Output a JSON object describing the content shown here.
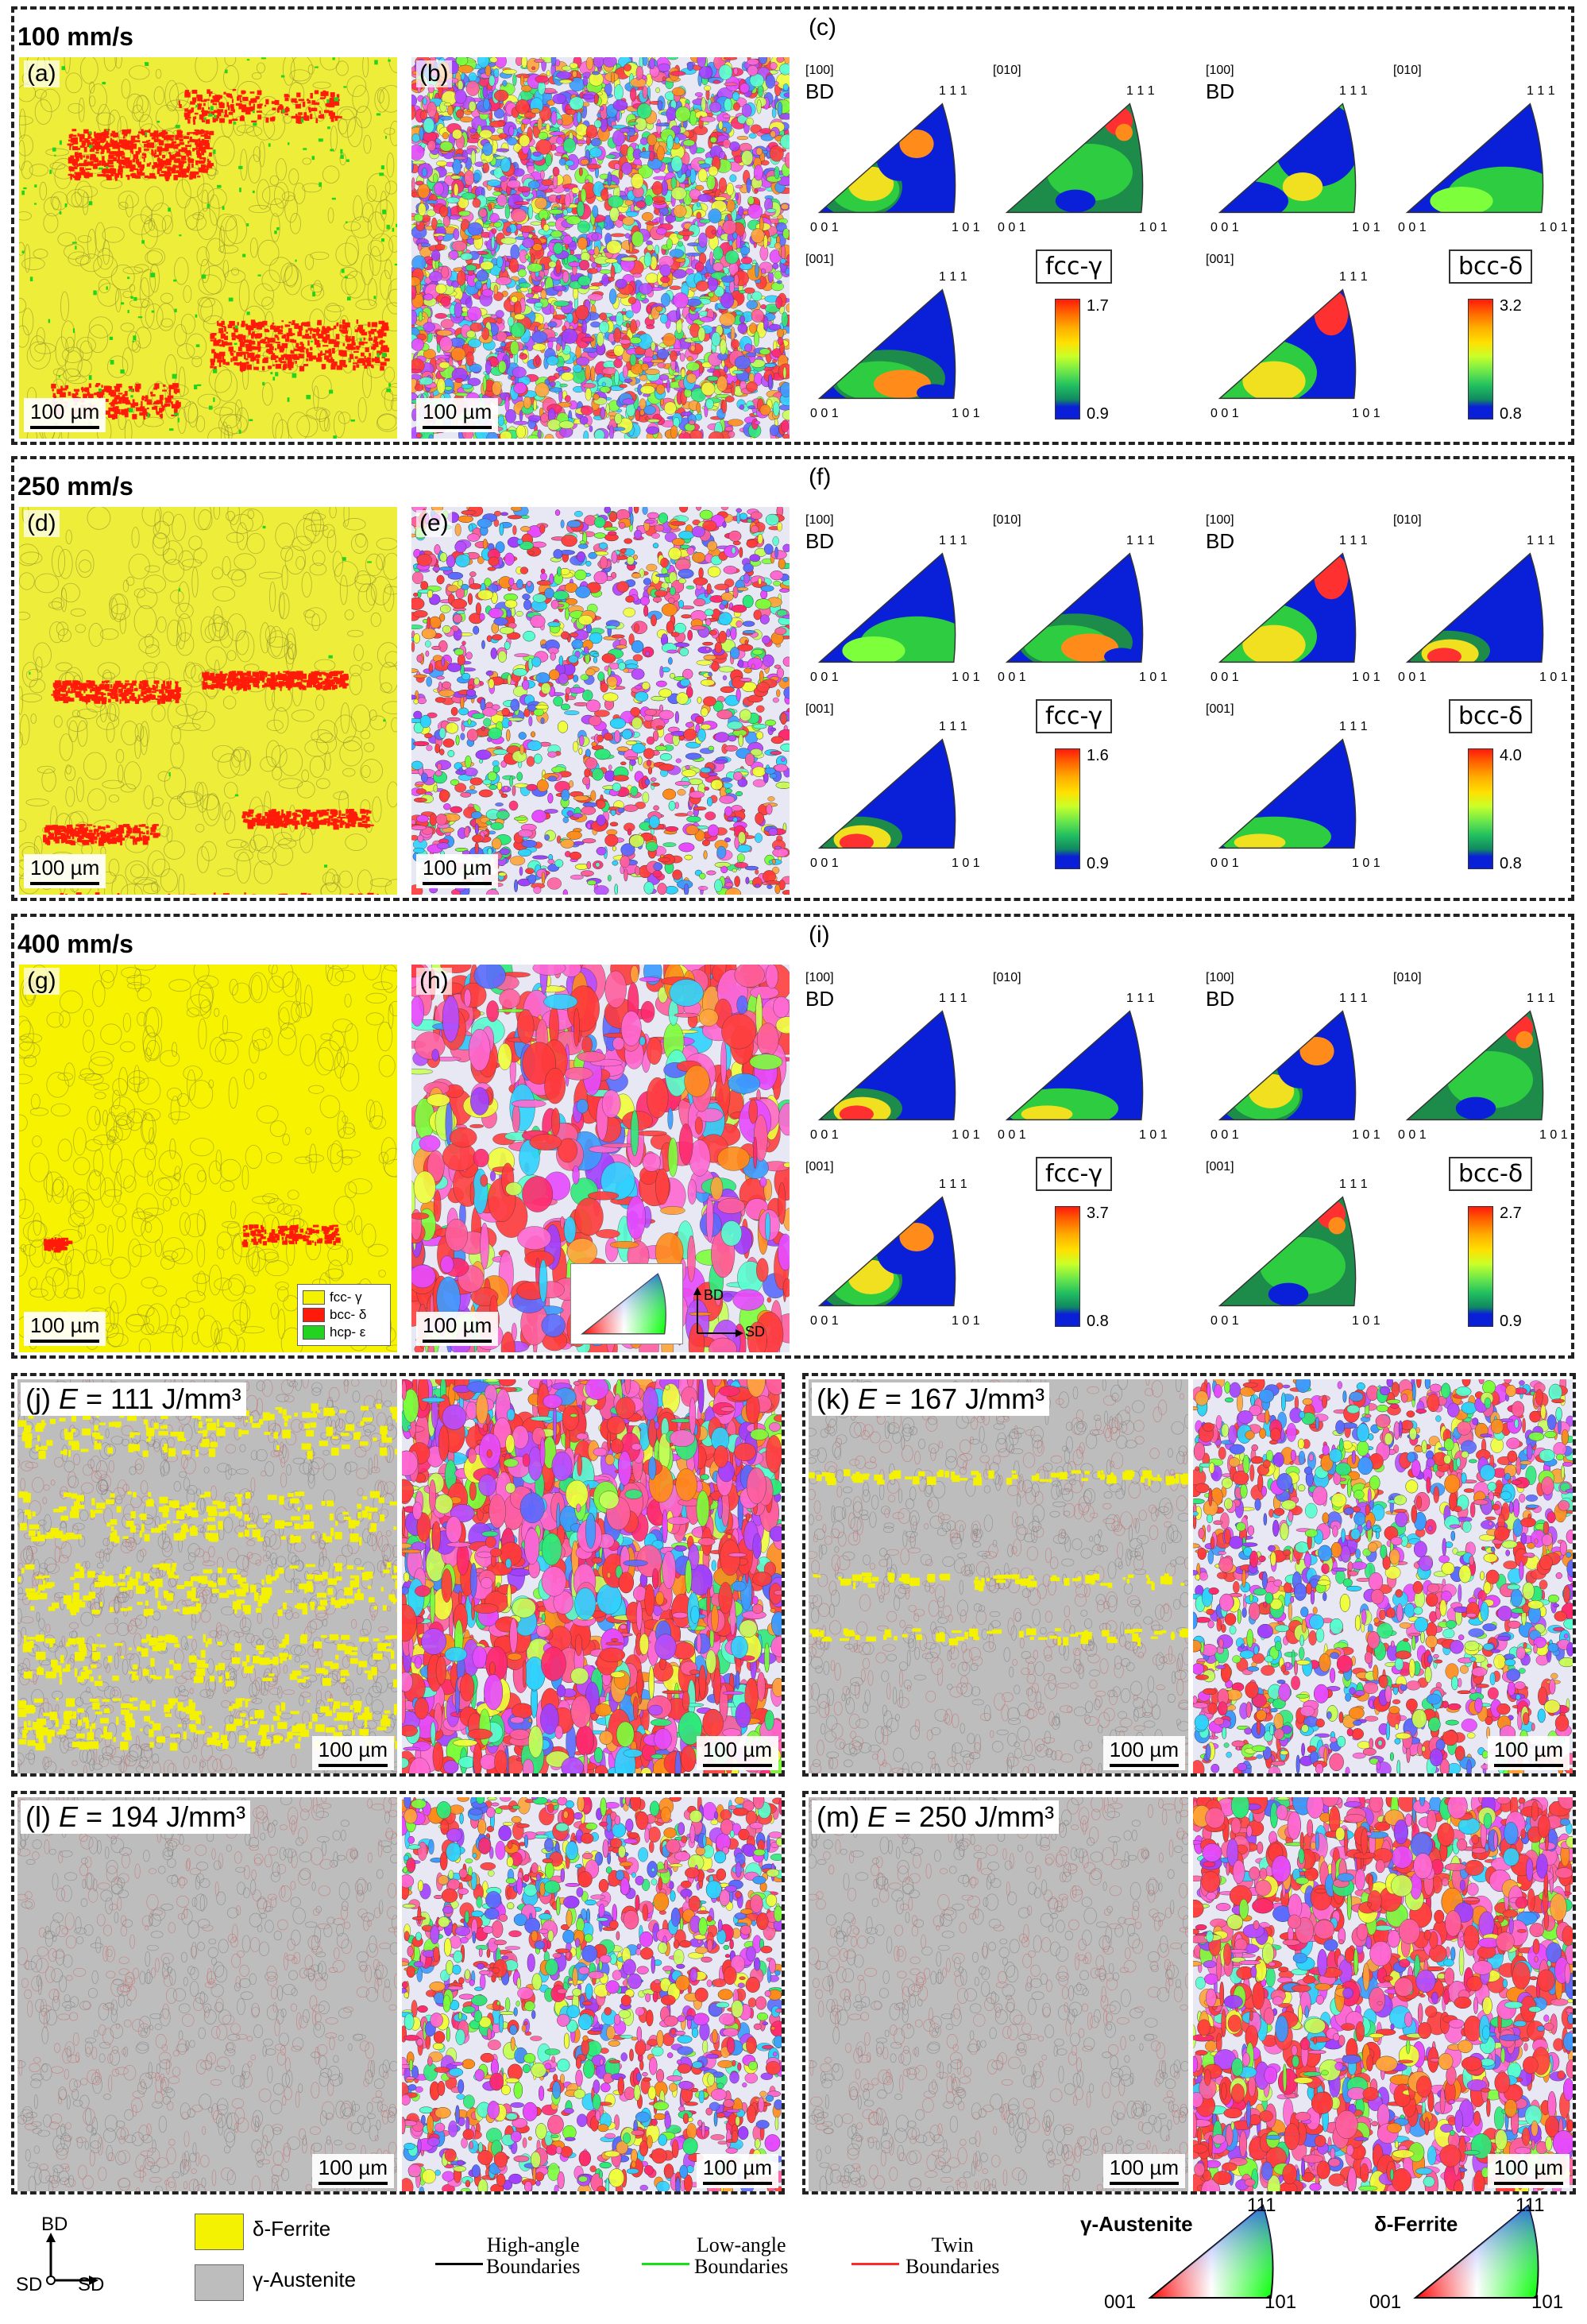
{
  "rows": [
    {
      "title": "100 mm/s",
      "phase_label": "(a)",
      "ipfmap_label": "(b)",
      "pf_label": "(c)",
      "scale": "100 µm"
    },
    {
      "title": "250 mm/s",
      "phase_label": "(d)",
      "ipfmap_label": "(e)",
      "pf_label": "(f)",
      "scale": "100 µm"
    },
    {
      "title": "400 mm/s",
      "phase_label": "(g)",
      "ipfmap_label": "(h)",
      "pf_label": "(i)",
      "scale": "100 µm"
    }
  ],
  "ipf": {
    "dir_100": "[100]",
    "dir_010": "[010]",
    "dir_001": "[001]",
    "bd": "BD",
    "c111": "1 1 1",
    "c001": "0 0 1",
    "c101": "1 0 1",
    "fcc": "fcc-γ",
    "bcc": "bcc-δ"
  },
  "colorbars": [
    {
      "fcc_max": "1.7",
      "fcc_min": "0.9",
      "bcc_max": "3.2",
      "bcc_min": "0.8"
    },
    {
      "fcc_max": "1.6",
      "fcc_min": "0.9",
      "bcc_max": "4.0",
      "bcc_min": "0.8"
    },
    {
      "fcc_max": "3.7",
      "fcc_min": "0.8",
      "bcc_max": "2.7",
      "bcc_min": "0.9"
    }
  ],
  "phase_legend": {
    "fcc": "fcc- γ",
    "bcc": "bcc- δ",
    "hcp": "hcp- ε"
  },
  "axes_small": {
    "bd": "BD",
    "sd": "SD"
  },
  "energy_panels": [
    {
      "label": "(j)",
      "prefix": "E",
      "value": " = 111 J/mm³",
      "scale_left": "100 µm",
      "scale_right": "100 µm"
    },
    {
      "label": "(k)",
      "prefix": "E",
      "value": " = 167 J/mm³",
      "scale_left": "100 µm",
      "scale_right": "100 µm"
    },
    {
      "label": "(l)",
      "prefix": "E",
      "value": " = 194 J/mm³",
      "scale_left": "100 µm",
      "scale_right": "100 µm"
    },
    {
      "label": "(m)",
      "prefix": "E",
      "value": " = 250 J/mm³",
      "scale_left": "100 µm",
      "scale_right": "100 µm"
    }
  ],
  "bottom_legend": {
    "bd": "BD",
    "sd_left": "SD",
    "sd_right": "SD",
    "delta_ferrite": "δ-Ferrite",
    "gamma_austenite": "γ-Austenite",
    "high_angle": "High-angle\nBoundaries",
    "low_angle": "Low-angle\nBoundaries",
    "twin": "Twin\nBoundaries",
    "ipf_gamma": "γ-Austenite",
    "ipf_delta": "δ-Ferrite",
    "c111": "111",
    "c001": "001",
    "c101": "101"
  },
  "colors": {
    "yellow": "#f4f200",
    "red": "#ff1a0a",
    "green": "#22d420",
    "gray": "#bdbdbd",
    "high_angle": "#000000",
    "low_angle": "#18e018",
    "twin": "#ff2a2a"
  }
}
